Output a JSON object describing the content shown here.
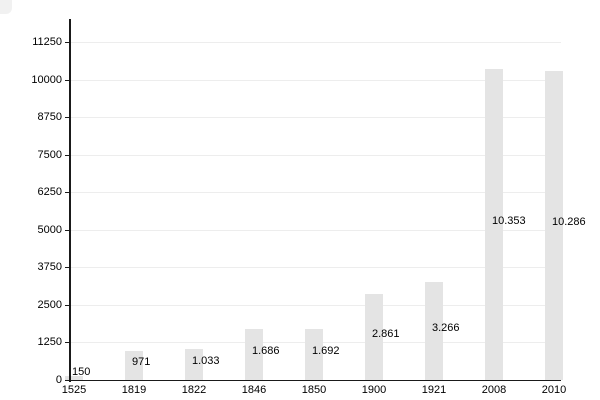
{
  "chart_data": {
    "type": "bar",
    "title": "",
    "xlabel": "",
    "ylabel": "",
    "categories": [
      "1525",
      "1819",
      "1822",
      "1846",
      "1850",
      "1900",
      "1921",
      "2008",
      "2010"
    ],
    "values": [
      150,
      971,
      1033,
      1686,
      1692,
      2861,
      3266,
      10353,
      10286
    ],
    "value_labels": [
      "150",
      "971",
      "1.033",
      "1.686",
      "1.692",
      "2.861",
      "3.266",
      "10.353",
      "10.286"
    ],
    "y_ticks": [
      0,
      1250,
      2500,
      3750,
      5000,
      6250,
      7500,
      8750,
      10000,
      11250
    ],
    "y_tick_labels": [
      "0",
      "1250",
      "2500",
      "3750",
      "5000",
      "6250",
      "7500",
      "8750",
      "10000",
      "11250"
    ],
    "ylim": [
      0,
      12000
    ],
    "grid": true,
    "legend": "none",
    "colors": {
      "bar": "#e4e4e4",
      "gridline": "#ededed",
      "axis": "#1a1a1a",
      "text": "#000000",
      "background": "#ffffff",
      "corner_artifact": "#f1f1f1"
    }
  }
}
